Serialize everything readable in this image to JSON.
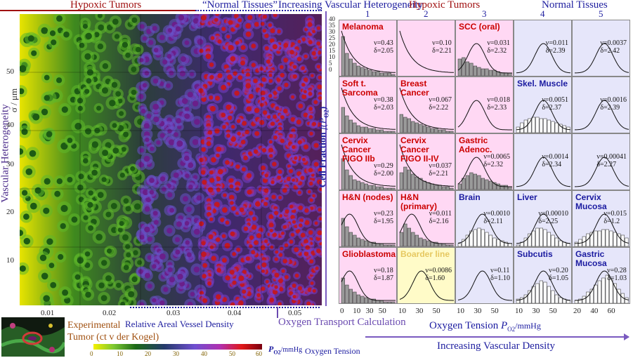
{
  "left": {
    "hypoxic_label": "Hypoxic Tumors",
    "normal_label": "“Normal Tissues”",
    "y_axis_label": "Vascular Heterogeneity",
    "y_unit": "σ / μm",
    "y_ticks": [
      "50",
      "40",
      "30",
      "20",
      "10"
    ],
    "x_ticks": [
      "0.01",
      "0.02",
      "0.03",
      "0.04",
      "0.05"
    ],
    "x_axis_label": "Relative Areal Vessel Density",
    "experimental_label": "Experimental",
    "experimental_sub": "Tumor (ct v der Kogel)",
    "transport_label": "Oxygen Transport Calculation",
    "colorbar_ticks": [
      "0",
      "10",
      "20",
      "30",
      "40",
      "50",
      "60"
    ],
    "colorbar_unit": "P",
    "colorbar_unit_sub": "O2",
    "colorbar_unit_rest": "/mmHg",
    "colorbar_label": "Oxygen Tension"
  },
  "right": {
    "header_left": "Increasing Vascular Heterogeneity",
    "header_hypoxic": "Hypoxic Tumors",
    "header_normal": "Normal Tissues",
    "col_numbers": [
      "1",
      "2",
      "3",
      "4",
      "5"
    ],
    "y_axis_label": "Cell Fraction",
    "y_axis_func": "f(P",
    "y_axis_func_sub": "O2",
    "y_axis_func_end": ")",
    "y_ticks": [
      "40",
      "35",
      "30",
      "25",
      "20",
      "15",
      "10",
      "5",
      "0"
    ],
    "x_ticks_cols": [
      [
        "0",
        "10",
        "30",
        "50"
      ],
      [
        "10",
        "30",
        "50"
      ],
      [
        "10",
        "30",
        "50"
      ],
      [
        "10",
        "30",
        "50"
      ],
      [
        "20",
        "40",
        "60"
      ]
    ],
    "x_axis_label": "Oxygen Tension",
    "x_axis_unit": "P",
    "x_axis_unit_sub": "O2",
    "x_axis_unit_rest": "/mmHg",
    "bottom_label": "Increasing Vascular Density"
  },
  "colors": {
    "hypoxic_bg": "#ffd8f4",
    "normal_bg": "#e6e6fa",
    "border_bg": "#fffbc8",
    "tumor_text": "#cc0000",
    "normal_text": "#1a1aa0",
    "border_text": "#e6c860"
  },
  "grid": [
    {
      "name": "Melanoma",
      "v": "ν=0.43",
      "d": "δ=2.05",
      "type": "tumor",
      "hist": [
        28,
        16,
        12,
        9,
        7,
        6,
        5,
        4,
        3,
        3,
        2,
        2,
        2,
        1
      ]
    },
    {
      "name": "",
      "v": "ν=0.10",
      "d": "δ=2.21",
      "type": "tumor",
      "hist": []
    },
    {
      "name": "SCC (oral)",
      "v": "ν=0.031",
      "d": "δ=2.32",
      "type": "tumor",
      "hist": [
        12,
        13,
        10,
        9,
        7,
        6,
        5,
        5,
        4,
        4,
        3,
        2,
        2,
        2
      ]
    },
    {
      "name": "",
      "v": "ν=0.011",
      "d": "δ=2.39",
      "type": "normal",
      "hist": []
    },
    {
      "name": "",
      "v": "ν=0.0037",
      "d": "δ=2.42",
      "type": "normal",
      "hist": []
    },
    {
      "name": "Soft t. Sarcoma",
      "v": "ν=0.38",
      "d": "δ=2.03",
      "type": "tumor",
      "hist": [
        18,
        12,
        9,
        7,
        5,
        4,
        4,
        3,
        3,
        2,
        2,
        1,
        1,
        1
      ]
    },
    {
      "name": "Breast Cancer",
      "v": "ν=0.067",
      "d": "δ=2.22",
      "type": "tumor",
      "hist": [
        13,
        11,
        10,
        8,
        7,
        6,
        5,
        4,
        3,
        3,
        2,
        2,
        1,
        1
      ]
    },
    {
      "name": "",
      "v": "ν=0.018",
      "d": "δ=2.33",
      "type": "tumor",
      "hist": []
    },
    {
      "name": "Skel. Muscle",
      "v": "ν=0.0051",
      "d": "δ=2.37",
      "type": "normal",
      "hist": [
        4,
        7,
        9,
        10,
        11,
        11,
        10,
        10,
        9,
        8,
        7,
        6,
        5,
        4
      ]
    },
    {
      "name": "",
      "v": "ν=0.0016",
      "d": "δ=2.39",
      "type": "normal",
      "hist": []
    },
    {
      "name": "Cervix Cancer\nFIGO IIb",
      "v": "ν=0.29",
      "d": "δ=2.00",
      "type": "tumor",
      "hist": [
        22,
        14,
        10,
        7,
        6,
        5,
        4,
        3,
        3,
        2,
        2,
        1,
        1,
        1
      ]
    },
    {
      "name": "Cervix Cancer\nFIGO II-IV",
      "v": "ν=0.037",
      "d": "δ=2.21",
      "type": "tumor",
      "hist": [
        12,
        16,
        14,
        11,
        9,
        8,
        6,
        5,
        4,
        3,
        3,
        2,
        2,
        1
      ]
    },
    {
      "name": "Gastric Adenoc.",
      "v": "ν=0.0065",
      "d": "δ=2.32",
      "type": "tumor",
      "hist": [
        4,
        8,
        10,
        12,
        11,
        10,
        8,
        7,
        6,
        5,
        4,
        3,
        3,
        2
      ]
    },
    {
      "name": "",
      "v": "ν=0.0014",
      "d": "δ=2.34",
      "type": "normal",
      "hist": []
    },
    {
      "name": "",
      "v": "ν=0.00041",
      "d": "δ=2.27",
      "type": "normal",
      "hist": []
    },
    {
      "name": "H&N (nodes)",
      "v": "ν=0.23",
      "d": "δ=1.95",
      "type": "tumor",
      "hist": [
        20,
        14,
        10,
        8,
        6,
        5,
        4,
        3,
        3,
        2,
        2,
        1,
        1,
        1
      ]
    },
    {
      "name": "H&N (primary)",
      "v": "ν=0.011",
      "d": "δ=2.16",
      "type": "tumor",
      "hist": [
        10,
        16,
        13,
        10,
        8,
        6,
        5,
        4,
        3,
        3,
        2,
        2,
        1,
        1
      ]
    },
    {
      "name": "Brain",
      "v": "ν=0.0010",
      "d": "δ=2.11",
      "type": "normal",
      "hist": [
        2,
        5,
        8,
        11,
        12,
        13,
        12,
        10,
        8,
        6,
        5,
        4,
        3,
        2
      ]
    },
    {
      "name": "Liver",
      "v": "ν=0.00010",
      "d": "δ=2.25",
      "type": "normal",
      "hist": [
        1,
        3,
        6,
        9,
        11,
        13,
        13,
        12,
        10,
        8,
        6,
        4,
        3,
        2
      ]
    },
    {
      "name": "Cervix Mucosa",
      "v": "ν=0.015",
      "d": "δ=1.2",
      "type": "normal",
      "hist": [
        3,
        5,
        7,
        9,
        10,
        11,
        11,
        12,
        12,
        11,
        10,
        9,
        8,
        6
      ]
    },
    {
      "name": "Glioblastoma",
      "v": "ν=0.18",
      "d": "δ=1.87",
      "type": "tumor",
      "hist": [
        18,
        13,
        10,
        8,
        6,
        5,
        4,
        3,
        3,
        2,
        2,
        1,
        1,
        1
      ]
    },
    {
      "name": "Boarder line",
      "v": "ν=0.0086",
      "d": "δ=1.60",
      "type": "border",
      "hist": []
    },
    {
      "name": "",
      "v": "ν=0.11",
      "d": "δ=1.10",
      "type": "normal",
      "hist": []
    },
    {
      "name": "Subcutis",
      "v": "ν=0.20",
      "d": "δ=1.05",
      "type": "normal",
      "hist": [
        3,
        4,
        6,
        9,
        12,
        14,
        16,
        15,
        12,
        9,
        6,
        4,
        3,
        2
      ]
    },
    {
      "name": "Gastric Mucosa",
      "v": "ν=0.28",
      "d": "δ=1.03",
      "type": "normal",
      "hist": [
        2,
        3,
        5,
        8,
        10,
        13,
        16,
        18,
        20,
        17,
        14,
        10,
        7,
        4
      ]
    }
  ]
}
